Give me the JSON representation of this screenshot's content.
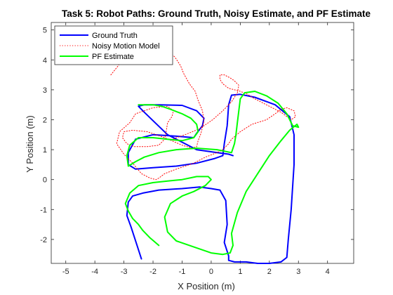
{
  "chart_data": {
    "type": "line",
    "title": "Task 5: Robot Paths: Ground Truth, Noisy Estimate, and PF Estimate",
    "xlabel": "X Position (m)",
    "ylabel": "Y Position (m)",
    "xlim": [
      -5.5,
      4.9
    ],
    "ylim": [
      -2.8,
      5.25
    ],
    "xticks": [
      -5,
      -4,
      -3,
      -2,
      -1,
      0,
      1,
      2,
      3,
      4
    ],
    "yticks": [
      -2,
      -1,
      0,
      1,
      2,
      3,
      4,
      5
    ],
    "grid": false,
    "legend_location": "top-left",
    "series": [
      {
        "name": "Ground Truth",
        "color": "#0000ff",
        "style": "solid",
        "x": [
          -2.4,
          -2.55,
          -2.75,
          -2.9,
          -2.85,
          -2.7,
          -2.35,
          -1.8,
          -1.0,
          -0.4,
          0.0,
          0.3,
          0.5,
          0.55,
          0.45,
          0.6,
          0.6,
          0.8,
          1.2,
          1.6,
          2.0,
          2.4,
          2.6,
          2.65,
          2.75,
          2.85,
          2.85,
          2.7,
          2.2,
          1.5,
          1.0,
          0.7,
          0.6,
          0.55,
          0.45,
          0.4,
          0.1,
          -0.5,
          -1.2,
          -2.0,
          -2.6,
          -2.85,
          -2.85,
          -2.6,
          -2.0,
          -1.2,
          -0.6,
          -0.5,
          -0.3,
          -0.25,
          -0.5,
          -1.0,
          -1.8,
          -2.3,
          -2.5,
          -2.3,
          -1.5,
          -0.5,
          0.2,
          0.6,
          0.75
        ],
        "y": [
          -2.65,
          -2.2,
          -1.6,
          -1.2,
          -0.75,
          -0.55,
          -0.45,
          -0.35,
          -0.3,
          -0.25,
          -0.3,
          -0.35,
          -0.7,
          -1.5,
          -2.1,
          -2.55,
          -2.7,
          -2.75,
          -2.75,
          -2.8,
          -2.8,
          -2.75,
          -2.6,
          -2.0,
          -1.0,
          0.5,
          1.5,
          2.1,
          2.5,
          2.75,
          2.85,
          2.82,
          2.5,
          1.8,
          1.2,
          0.8,
          0.7,
          0.55,
          0.45,
          0.4,
          0.35,
          0.5,
          0.9,
          1.35,
          1.5,
          1.45,
          1.4,
          1.55,
          1.8,
          2.05,
          2.3,
          2.48,
          2.5,
          2.5,
          2.45,
          2.25,
          1.5,
          1.0,
          0.9,
          0.85,
          0.8
        ]
      },
      {
        "name": "Noisy Motion Model",
        "color": "#ff0000",
        "style": "dotted",
        "x": [
          -3.45,
          -3.2,
          -2.85,
          -2.35,
          -1.6,
          -1.25,
          -1.05,
          -0.95,
          -0.75,
          -0.55,
          -0.45,
          -0.3,
          -0.25,
          -0.35,
          -0.45,
          -0.5,
          -0.65,
          -1.0,
          -1.6,
          -2.2,
          -2.7,
          -3.0,
          -3.05,
          -2.9,
          -2.65,
          -2.2,
          -1.8,
          -1.6,
          -1.55,
          -1.5,
          -1.35,
          -1.3,
          -1.5,
          -2.0,
          -2.6,
          -2.8,
          -3.15,
          -3.25,
          -3.0,
          -2.7,
          -2.4,
          -2.1,
          -1.9,
          -1.8,
          -1.6,
          -1.2,
          -0.6,
          -0.2,
          0.2,
          0.4,
          0.5,
          0.6,
          0.7,
          1.0,
          1.4,
          1.9,
          2.2,
          2.4,
          2.6,
          2.85,
          2.9,
          2.75,
          2.4,
          1.9,
          1.5,
          1.25,
          1.0,
          0.6,
          0.4,
          0.3,
          0.3,
          0.45,
          0.65,
          0.8,
          0.95,
          0.9,
          0.7,
          0.4,
          0.05,
          -0.4,
          -0.9,
          -1.2,
          -1.4
        ],
        "y": [
          3.5,
          3.8,
          4.3,
          4.45,
          4.35,
          4.1,
          3.8,
          3.55,
          3.2,
          2.95,
          2.65,
          2.3,
          1.95,
          1.55,
          1.3,
          1.1,
          1.05,
          1.15,
          1.4,
          1.6,
          1.65,
          1.6,
          1.4,
          1.2,
          1.1,
          1.1,
          1.15,
          1.35,
          1.6,
          1.9,
          2.1,
          2.3,
          2.45,
          2.4,
          2.2,
          1.9,
          1.6,
          1.2,
          0.85,
          0.55,
          0.2,
          0.05,
          0.0,
          0.05,
          0.2,
          0.35,
          0.55,
          0.75,
          0.9,
          1.0,
          1.1,
          1.2,
          1.35,
          1.6,
          1.85,
          2.0,
          2.2,
          2.35,
          2.4,
          2.3,
          2.1,
          2.0,
          2.25,
          2.5,
          2.7,
          2.85,
          2.95,
          3.05,
          3.2,
          3.35,
          3.5,
          3.5,
          3.4,
          3.3,
          3.15,
          2.9,
          2.6,
          2.3,
          2.0,
          1.7,
          1.5,
          1.4,
          1.3
        ]
      },
      {
        "name": "PF Estimate",
        "color": "#00ff00",
        "style": "solid",
        "x": [
          -1.8,
          -2.1,
          -2.35,
          -2.5,
          -2.7,
          -2.85,
          -2.95,
          -2.8,
          -2.5,
          -2.0,
          -1.5,
          -1.0,
          -0.5,
          -0.1,
          0.0,
          -0.2,
          -0.6,
          -1.0,
          -1.4,
          -1.6,
          -1.5,
          -1.2,
          -0.6,
          0.0,
          0.4,
          0.65,
          0.75,
          0.7,
          0.9,
          1.2,
          1.6,
          2.0,
          2.4,
          2.7,
          2.95,
          3.0,
          2.8,
          2.6,
          2.3,
          1.9,
          1.5,
          1.15,
          1.0,
          0.95,
          0.9,
          0.85,
          0.8,
          0.7,
          0.2,
          -0.5,
          -1.2,
          -1.8,
          -2.3,
          -2.6,
          -2.85,
          -2.9,
          -2.8,
          -2.5,
          -2.0,
          -1.5,
          -1.0,
          -0.6,
          -0.45,
          -0.5,
          -0.7,
          -1.0,
          -1.4,
          -1.7,
          -2.0,
          -2.5
        ],
        "y": [
          -2.2,
          -1.95,
          -1.7,
          -1.5,
          -1.3,
          -1.05,
          -0.8,
          -0.45,
          -0.2,
          -0.1,
          -0.05,
          0.0,
          0.1,
          0.1,
          0.0,
          -0.2,
          -0.4,
          -0.55,
          -0.8,
          -1.25,
          -1.75,
          -2.05,
          -2.25,
          -2.45,
          -2.5,
          -2.45,
          -2.2,
          -1.8,
          -1.1,
          -0.4,
          0.2,
          0.8,
          1.3,
          1.65,
          1.85,
          1.75,
          1.8,
          2.2,
          2.55,
          2.8,
          2.95,
          2.9,
          2.7,
          2.3,
          1.9,
          1.5,
          1.2,
          0.9,
          1.0,
          1.05,
          1.0,
          0.9,
          0.75,
          0.6,
          0.45,
          0.8,
          1.15,
          1.4,
          1.4,
          1.35,
          1.3,
          1.4,
          1.6,
          1.85,
          2.05,
          2.2,
          2.35,
          2.45,
          2.5,
          2.5
        ]
      }
    ]
  }
}
